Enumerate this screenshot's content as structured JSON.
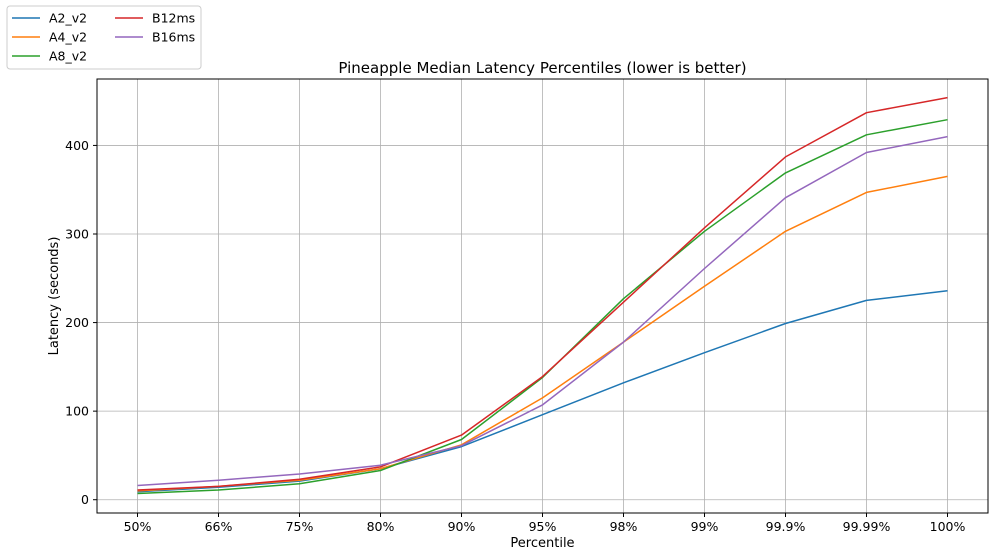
{
  "chart_data": {
    "type": "line",
    "title": "Pineapple Median Latency Percentiles (lower is better)",
    "xlabel": "Percentile",
    "ylabel": "Latency (seconds)",
    "categories": [
      "50%",
      "66%",
      "75%",
      "80%",
      "90%",
      "95%",
      "98%",
      "99%",
      "99.9%",
      "99.99%",
      "100%"
    ],
    "ylim": [
      -15,
      475
    ],
    "yticks": [
      0,
      100,
      200,
      300,
      400
    ],
    "grid": true,
    "legend_position": "upper-left-outside",
    "series": [
      {
        "name": "A2_v2",
        "color": "#1f77b4",
        "values": [
          9,
          14,
          21,
          35,
          60,
          96,
          132,
          166,
          199,
          225,
          236
        ]
      },
      {
        "name": "A4_v2",
        "color": "#ff7f0e",
        "values": [
          10,
          15,
          22,
          35,
          62,
          115,
          178,
          241,
          303,
          347,
          365
        ]
      },
      {
        "name": "A8_v2",
        "color": "#2ca02c",
        "values": [
          7,
          11,
          18,
          33,
          68,
          138,
          227,
          303,
          369,
          412,
          429
        ]
      },
      {
        "name": "B12ms",
        "color": "#d62728",
        "values": [
          11,
          15,
          23,
          37,
          73,
          139,
          223,
          307,
          387,
          437,
          454
        ]
      },
      {
        "name": "B16ms",
        "color": "#9467bd",
        "values": [
          16,
          22,
          29,
          39,
          61,
          107,
          178,
          261,
          341,
          392,
          410
        ]
      }
    ]
  }
}
